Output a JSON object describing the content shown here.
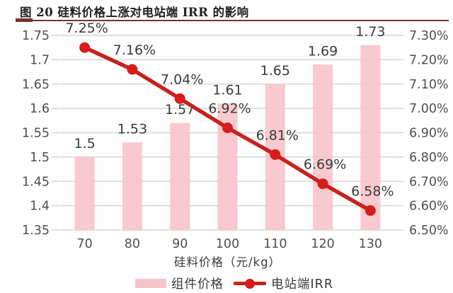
{
  "page": {
    "title": "图 20 硅料价格上涨对电站端 IRR 的影响"
  },
  "colors": {
    "title_rule": "#7d2f28",
    "grid": "#d6d6d6",
    "tick_text": "#4f4f4f",
    "label_text": "#3b3b3b",
    "bar_fill": "#f7c3ca",
    "line_red": "#c52222",
    "marker_red": "#d81b1b"
  },
  "chart_data": {
    "type": "bar",
    "subtype": "bar+line combo, dual y-axis",
    "title": "图 20 硅料价格上涨对电站端 IRR 的影响",
    "categories": [
      "70",
      "80",
      "90",
      "100",
      "110",
      "120",
      "130"
    ],
    "xlabel": "硅料价格（元/kg）",
    "grid": true,
    "legend_position": "bottom",
    "series": [
      {
        "name": "组件价格",
        "type": "bar",
        "axis": "left",
        "color": "#f7c3ca",
        "values": [
          1.5,
          1.53,
          1.57,
          1.61,
          1.65,
          1.69,
          1.73
        ],
        "labels": [
          "1.5",
          "1.53",
          "1.57",
          "1.61",
          "1.65",
          "1.69",
          "1.73"
        ]
      },
      {
        "name": "电站端IRR",
        "type": "line",
        "axis": "right",
        "color": "#c52222",
        "marker_color": "#d81b1b",
        "values": [
          7.25,
          7.16,
          7.04,
          6.92,
          6.81,
          6.69,
          6.58
        ],
        "labels": [
          "7.25%",
          "7.16%",
          "7.04%",
          "6.92%",
          "6.81%",
          "6.69%",
          "6.58%"
        ]
      }
    ],
    "y_left": {
      "min": 1.35,
      "max": 1.75,
      "ticks": [
        "1.75",
        "1.7",
        "1.65",
        "1.6",
        "1.55",
        "1.5",
        "1.45",
        "1.4",
        "1.35"
      ]
    },
    "y_right": {
      "min": 6.5,
      "max": 7.3,
      "ticks": [
        "7.30%",
        "7.20%",
        "7.10%",
        "7.00%",
        "6.90%",
        "6.80%",
        "6.70%",
        "6.60%",
        "6.50%"
      ]
    }
  }
}
